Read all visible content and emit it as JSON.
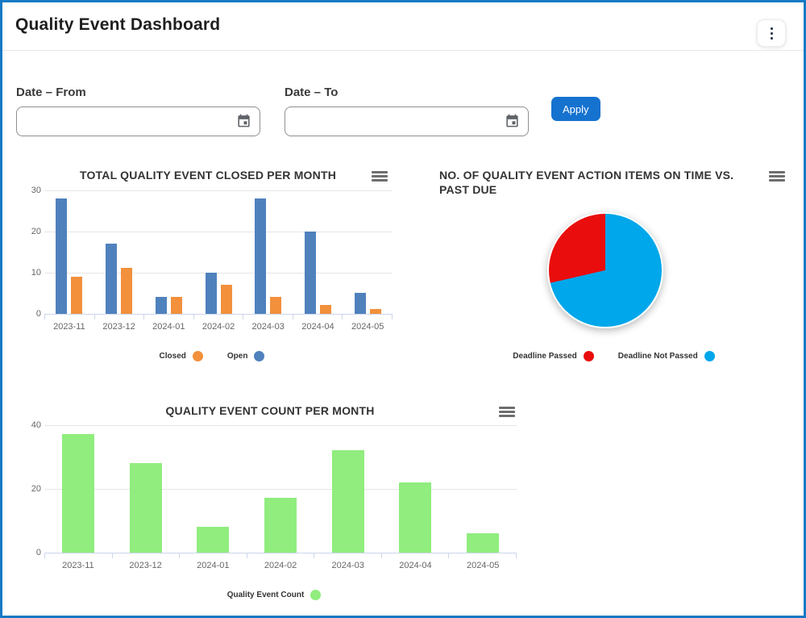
{
  "header": {
    "title": "Quality Event Dashboard",
    "menu_icon": "kebab-menu"
  },
  "filters": {
    "from_label": "Date – From",
    "to_label": "Date – To",
    "from_value": "",
    "to_value": "",
    "date_icon": "calendar",
    "apply_label": "Apply"
  },
  "colors": {
    "accent_button": "#1572cf",
    "page_border": "#1779c4",
    "open_blue": "#4f81bd",
    "closed_orange": "#f2903c",
    "count_green": "#90ed7e",
    "deadline_passed_red": "#e90d0d",
    "deadline_not_passed_blue": "#00a7ea"
  },
  "chart_data": [
    {
      "type": "bar",
      "title": "TOTAL QUALITY EVENT CLOSED PER MONTH",
      "menu_icon": "hamburger-menu",
      "categories": [
        "2023-11",
        "2023-12",
        "2024-01",
        "2024-02",
        "2024-03",
        "2024-04",
        "2024-05"
      ],
      "series": [
        {
          "name": "Open",
          "color": "#4f81bd",
          "values": [
            28,
            17,
            4,
            10,
            28,
            20,
            5
          ]
        },
        {
          "name": "Closed",
          "color": "#f2903c",
          "values": [
            9,
            11,
            4,
            7,
            4,
            2,
            1
          ]
        }
      ],
      "legend": [
        {
          "label": "Closed",
          "color": "#f2903c"
        },
        {
          "label": "Open",
          "color": "#4f81bd"
        }
      ],
      "xlabel": "",
      "ylabel": "",
      "ylim": [
        0,
        30
      ],
      "yticks": [
        0,
        10,
        20,
        30
      ],
      "grid": true,
      "legend_position": "bottom-center"
    },
    {
      "type": "pie",
      "title": "NO. OF QUALITY EVENT ACTION ITEMS ON TIME VS. PAST DUE",
      "menu_icon": "hamburger-menu",
      "slices": [
        {
          "label": "Deadline Not Passed",
          "color": "#00a7ea",
          "percent": 71.4
        },
        {
          "label": "Deadline Passed",
          "color": "#e90d0d",
          "percent": 28.6
        }
      ],
      "legend": [
        {
          "label": "Deadline Passed",
          "color": "#e90d0d"
        },
        {
          "label": "Deadline Not Passed",
          "color": "#00a7ea"
        }
      ],
      "legend_position": "bottom-center"
    },
    {
      "type": "bar",
      "title": "QUALITY EVENT COUNT PER MONTH",
      "menu_icon": "hamburger-menu",
      "categories": [
        "2023-11",
        "2023-12",
        "2024-01",
        "2024-02",
        "2024-03",
        "2024-04",
        "2024-05"
      ],
      "series": [
        {
          "name": "Quality Event Count",
          "color": "#90ed7e",
          "values": [
            37,
            28,
            8,
            17,
            32,
            22,
            6
          ]
        }
      ],
      "legend": [
        {
          "label": "Quality Event Count",
          "color": "#90ed7e"
        }
      ],
      "xlabel": "",
      "ylabel": "",
      "ylim": [
        0,
        40
      ],
      "yticks": [
        0,
        20,
        40
      ],
      "grid": true,
      "legend_position": "bottom-center"
    }
  ]
}
